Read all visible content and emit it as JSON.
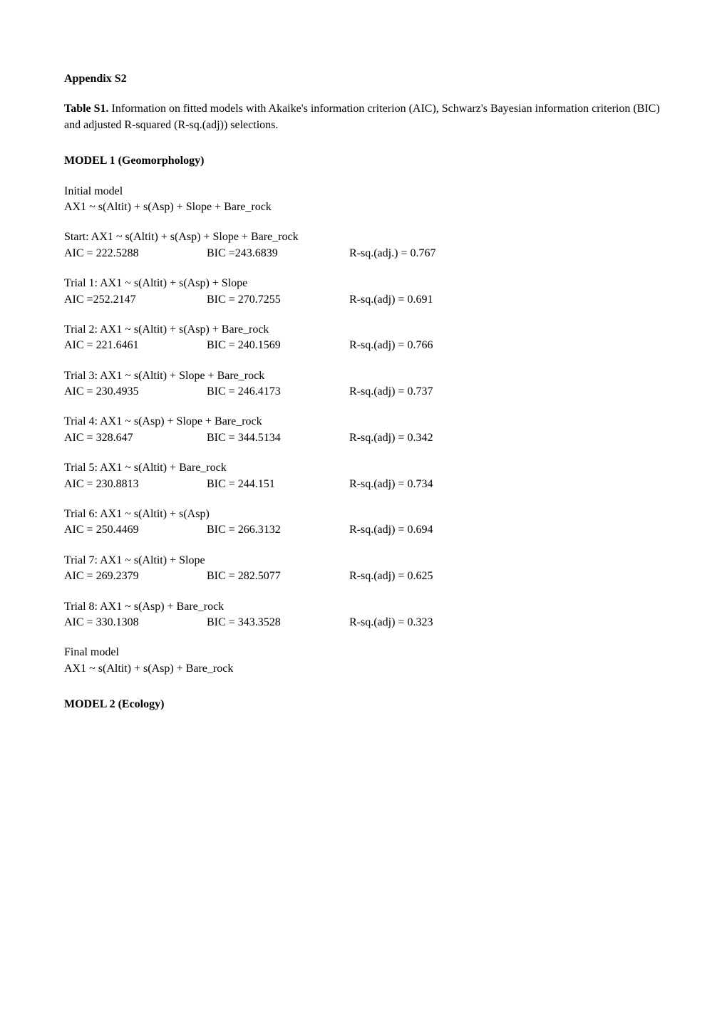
{
  "appendix_title": "Appendix S2",
  "table_caption_prefix": "Table S1.",
  "table_caption_rest": " Information on fitted models with Akaike's information criterion (AIC), Schwarz's Bayesian information criterion (BIC) and adjusted R-squared (R-sq.(adj)) selections.",
  "model1": {
    "heading": "MODEL 1 (Geomorphology)",
    "initial_label": "Initial model",
    "initial_formula": "AX1 ~ s(Altit) + s(Asp) + Slope + Bare_rock",
    "start": {
      "formula": "Start: AX1 ~ s(Altit) + s(Asp) + Slope + Bare_rock",
      "aic": "AIC = 222.5288",
      "bic": "BIC =243.6839",
      "rsq": "R-sq.(adj.) =  0.767"
    },
    "trials": [
      {
        "formula": "Trial 1: AX1 ~ s(Altit) + s(Asp) + Slope",
        "aic": "AIC =252.2147",
        "bic": "BIC = 270.7255",
        "rsq": "R-sq.(adj) =  0.691"
      },
      {
        "formula": "Trial 2: AX1 ~ s(Altit) + s(Asp) + Bare_rock",
        "aic": "AIC = 221.6461",
        "bic": "BIC = 240.1569",
        "rsq": "R-sq.(adj) =  0.766"
      },
      {
        "formula": "Trial 3: AX1 ~ s(Altit) + Slope + Bare_rock",
        "aic": "AIC = 230.4935",
        "bic": "BIC = 246.4173",
        "rsq": "R-sq.(adj) =  0.737"
      },
      {
        "formula": "Trial 4: AX1 ~  s(Asp) + Slope + Bare_rock",
        "aic": "AIC = 328.647",
        "bic": "BIC = 344.5134",
        "rsq": "R-sq.(adj) =  0.342"
      },
      {
        "formula": "Trial 5: AX1 ~  s(Altit) + Bare_rock",
        "aic": "AIC = 230.8813",
        "bic": "BIC = 244.151",
        "rsq": "R-sq.(adj) =  0.734"
      },
      {
        "formula": "Trial 6: AX1 ~  s(Altit) + s(Asp)",
        "aic": "AIC = 250.4469",
        "bic": "BIC = 266.3132",
        "rsq": "R-sq.(adj) =  0.694"
      },
      {
        "formula": "Trial 7: AX1 ~  s(Altit) + Slope",
        "aic": "AIC = 269.2379",
        "bic": "BIC = 282.5077",
        "rsq": "R-sq.(adj) =  0.625"
      },
      {
        "formula": "Trial 8: AX1 ~  s(Asp) + Bare_rock",
        "aic": "AIC =  330.1308",
        "bic": "BIC = 343.3528",
        "rsq": "R-sq.(adj) =  0.323"
      }
    ],
    "final_label": "Final model",
    "final_formula": "AX1 ~ s(Altit) + s(Asp) + Bare_rock"
  },
  "model2": {
    "heading": "MODEL 2 (Ecology)"
  }
}
